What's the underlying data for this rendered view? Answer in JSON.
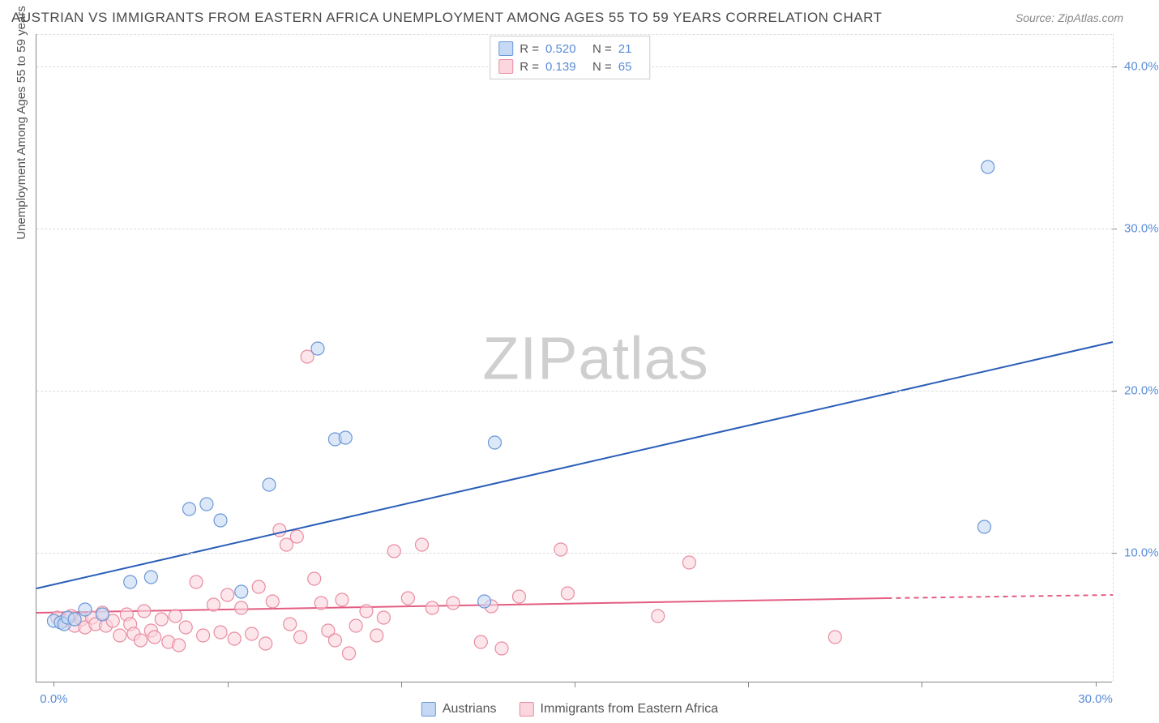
{
  "title": "AUSTRIAN VS IMMIGRANTS FROM EASTERN AFRICA UNEMPLOYMENT AMONG AGES 55 TO 59 YEARS CORRELATION CHART",
  "source": "Source: ZipAtlas.com",
  "y_axis_title": "Unemployment Among Ages 55 to 59 years",
  "watermark_left": "ZIP",
  "watermark_right": "atlas",
  "chart": {
    "type": "scatter",
    "background_color": "#ffffff",
    "grid_color": "#dddddd",
    "axis_color": "#888888",
    "xlim": [
      -0.5,
      30.5
    ],
    "ylim": [
      2,
      42
    ],
    "x_ticks": [
      0,
      5,
      10,
      15,
      20,
      25,
      30
    ],
    "x_tick_labels": {
      "0": "0.0%",
      "30": "30.0%"
    },
    "y_ticks": [
      10,
      20,
      30,
      40
    ],
    "y_tick_labels": {
      "10": "10.0%",
      "20": "20.0%",
      "30": "30.0%",
      "40": "40.0%"
    },
    "label_color": "#5b8cd6",
    "label_fontsize": 15,
    "marker_radius": 8,
    "marker_opacity": 0.6,
    "line_width": 2
  },
  "series": [
    {
      "name": "Austrians",
      "color": "#8cb3e8",
      "fill": "#c5d9f4",
      "border": "#6a98d8",
      "r_value": "0.520",
      "n_value": "21",
      "trend": {
        "x1": -0.5,
        "y1": 7.8,
        "x2": 30.5,
        "y2": 23.0,
        "color": "#2a5db8",
        "dash": null
      },
      "points": [
        {
          "x": 0.0,
          "y": 5.8
        },
        {
          "x": 0.2,
          "y": 5.7
        },
        {
          "x": 0.3,
          "y": 5.6
        },
        {
          "x": 0.4,
          "y": 6.0
        },
        {
          "x": 0.6,
          "y": 5.9
        },
        {
          "x": 0.9,
          "y": 6.5
        },
        {
          "x": 1.4,
          "y": 6.2
        },
        {
          "x": 2.2,
          "y": 8.2
        },
        {
          "x": 2.8,
          "y": 8.5
        },
        {
          "x": 3.9,
          "y": 12.7
        },
        {
          "x": 4.4,
          "y": 13.0
        },
        {
          "x": 4.8,
          "y": 12.0
        },
        {
          "x": 5.4,
          "y": 7.6
        },
        {
          "x": 6.2,
          "y": 14.2
        },
        {
          "x": 7.6,
          "y": 22.6
        },
        {
          "x": 8.1,
          "y": 17.0
        },
        {
          "x": 8.4,
          "y": 17.1
        },
        {
          "x": 12.4,
          "y": 7.0
        },
        {
          "x": 12.7,
          "y": 16.8
        },
        {
          "x": 26.8,
          "y": 11.6
        },
        {
          "x": 26.9,
          "y": 33.8
        }
      ]
    },
    {
      "name": "Immigrants from Eastern Africa",
      "color": "#f4a6b8",
      "fill": "#fbd6de",
      "border": "#e88ca0",
      "r_value": "0.139",
      "n_value": "65",
      "trend": {
        "x1": -0.5,
        "y1": 6.3,
        "x2": 24,
        "y2": 7.2,
        "color": "#e35d82",
        "dash": null
      },
      "trend_dash": {
        "x1": 24,
        "y1": 7.2,
        "x2": 30.5,
        "y2": 7.4,
        "color": "#e35d82"
      },
      "points": [
        {
          "x": 0.1,
          "y": 6.0
        },
        {
          "x": 0.3,
          "y": 5.8
        },
        {
          "x": 0.5,
          "y": 6.1
        },
        {
          "x": 0.6,
          "y": 5.5
        },
        {
          "x": 0.8,
          "y": 5.9
        },
        {
          "x": 0.9,
          "y": 5.4
        },
        {
          "x": 1.1,
          "y": 6.0
        },
        {
          "x": 1.2,
          "y": 5.6
        },
        {
          "x": 1.4,
          "y": 6.3
        },
        {
          "x": 1.5,
          "y": 5.5
        },
        {
          "x": 1.7,
          "y": 5.8
        },
        {
          "x": 1.9,
          "y": 4.9
        },
        {
          "x": 2.1,
          "y": 6.2
        },
        {
          "x": 2.2,
          "y": 5.6
        },
        {
          "x": 2.3,
          "y": 5.0
        },
        {
          "x": 2.5,
          "y": 4.6
        },
        {
          "x": 2.6,
          "y": 6.4
        },
        {
          "x": 2.8,
          "y": 5.2
        },
        {
          "x": 2.9,
          "y": 4.8
        },
        {
          "x": 3.1,
          "y": 5.9
        },
        {
          "x": 3.3,
          "y": 4.5
        },
        {
          "x": 3.5,
          "y": 6.1
        },
        {
          "x": 3.6,
          "y": 4.3
        },
        {
          "x": 3.8,
          "y": 5.4
        },
        {
          "x": 4.1,
          "y": 8.2
        },
        {
          "x": 4.3,
          "y": 4.9
        },
        {
          "x": 4.6,
          "y": 6.8
        },
        {
          "x": 4.8,
          "y": 5.1
        },
        {
          "x": 5.0,
          "y": 7.4
        },
        {
          "x": 5.2,
          "y": 4.7
        },
        {
          "x": 5.4,
          "y": 6.6
        },
        {
          "x": 5.7,
          "y": 5.0
        },
        {
          "x": 5.9,
          "y": 7.9
        },
        {
          "x": 6.1,
          "y": 4.4
        },
        {
          "x": 6.3,
          "y": 7.0
        },
        {
          "x": 6.5,
          "y": 11.4
        },
        {
          "x": 6.7,
          "y": 10.5
        },
        {
          "x": 6.8,
          "y": 5.6
        },
        {
          "x": 7.0,
          "y": 11.0
        },
        {
          "x": 7.1,
          "y": 4.8
        },
        {
          "x": 7.3,
          "y": 22.1
        },
        {
          "x": 7.5,
          "y": 8.4
        },
        {
          "x": 7.7,
          "y": 6.9
        },
        {
          "x": 7.9,
          "y": 5.2
        },
        {
          "x": 8.1,
          "y": 4.6
        },
        {
          "x": 8.3,
          "y": 7.1
        },
        {
          "x": 8.5,
          "y": 3.8
        },
        {
          "x": 8.7,
          "y": 5.5
        },
        {
          "x": 9.0,
          "y": 6.4
        },
        {
          "x": 9.3,
          "y": 4.9
        },
        {
          "x": 9.5,
          "y": 6.0
        },
        {
          "x": 9.8,
          "y": 10.1
        },
        {
          "x": 10.2,
          "y": 7.2
        },
        {
          "x": 10.6,
          "y": 10.5
        },
        {
          "x": 10.9,
          "y": 6.6
        },
        {
          "x": 11.5,
          "y": 6.9
        },
        {
          "x": 12.3,
          "y": 4.5
        },
        {
          "x": 12.6,
          "y": 6.7
        },
        {
          "x": 12.9,
          "y": 4.1
        },
        {
          "x": 13.4,
          "y": 7.3
        },
        {
          "x": 14.6,
          "y": 10.2
        },
        {
          "x": 14.8,
          "y": 7.5
        },
        {
          "x": 17.4,
          "y": 6.1
        },
        {
          "x": 18.3,
          "y": 9.4
        },
        {
          "x": 22.5,
          "y": 4.8
        }
      ]
    }
  ],
  "legend_top": {
    "r_label": "R =",
    "n_label": "N ="
  },
  "legend_bottom": [
    {
      "swatch_fill": "#c5d9f4",
      "swatch_border": "#6a98d8",
      "label": "Austrians"
    },
    {
      "swatch_fill": "#fbd6de",
      "swatch_border": "#e88ca0",
      "label": "Immigrants from Eastern Africa"
    }
  ]
}
